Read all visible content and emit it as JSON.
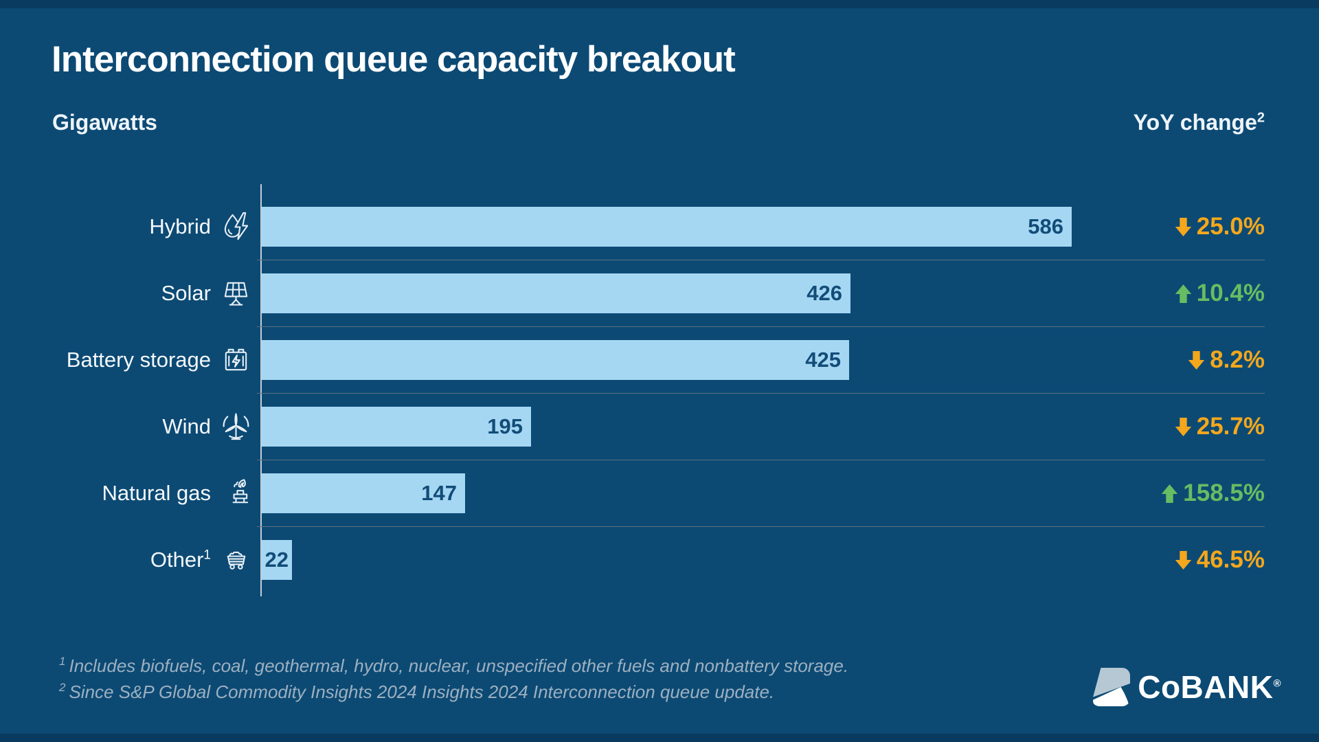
{
  "header": {
    "title": "Interconnection queue capacity breakout",
    "unit_label": "Gigawatts",
    "yoy_label": "YoY change",
    "yoy_sup": "2"
  },
  "chart_data": {
    "type": "bar",
    "orientation": "horizontal",
    "title": "Interconnection queue capacity breakout",
    "value_unit": "gigawatts",
    "categories": [
      "Hybrid",
      "Solar",
      "Battery storage",
      "Wind",
      "Natural gas",
      "Other"
    ],
    "values": [
      586,
      426,
      425,
      195,
      147,
      22
    ],
    "yoy_change_pct": [
      -25.0,
      10.4,
      -8.2,
      -25.7,
      158.5,
      -46.5
    ],
    "xlim": [
      0,
      600
    ],
    "legend": "none",
    "grid": "horizontal-row-separators",
    "value_labels": "inside-bar-end"
  },
  "rows": [
    {
      "label": "Hybrid",
      "label_sup": "",
      "icon": "hybrid-icon",
      "gw": 586,
      "value_label": "586",
      "yoy_label": "25.0%",
      "yoy_direction": "down"
    },
    {
      "label": "Solar",
      "label_sup": "",
      "icon": "solar-icon",
      "gw": 426,
      "value_label": "426",
      "yoy_label": "10.4%",
      "yoy_direction": "up"
    },
    {
      "label": "Battery storage",
      "label_sup": "",
      "icon": "battery-icon",
      "gw": 425,
      "value_label": "425",
      "yoy_label": "8.2%",
      "yoy_direction": "down"
    },
    {
      "label": "Wind",
      "label_sup": "",
      "icon": "wind-icon",
      "gw": 195,
      "value_label": "195",
      "yoy_label": "25.7%",
      "yoy_direction": "down"
    },
    {
      "label": "Natural gas",
      "label_sup": "",
      "icon": "gas-icon",
      "gw": 147,
      "value_label": "147",
      "yoy_label": "158.5%",
      "yoy_direction": "up"
    },
    {
      "label": "Other",
      "label_sup": "1",
      "icon": "other-icon",
      "gw": 22,
      "value_label": "22",
      "yoy_label": "46.5%",
      "yoy_direction": "down"
    }
  ],
  "footnotes": [
    {
      "sup": "1",
      "text": "Includes biofuels, coal, geothermal, hydro, nuclear, unspecified other fuels and nonbattery storage."
    },
    {
      "sup": "2",
      "text": "Since S&P Global Commodity Insights 2024 Insights 2024 Interconnection queue update."
    }
  ],
  "logo": {
    "text": "CoBANK",
    "registered_mark": "®"
  },
  "colors": {
    "background": "#0c4a74",
    "edge_strip": "#083b5f",
    "bar_fill": "#a5d7f3",
    "bar_value_text": "#124c77",
    "increase_green": "#67bd61",
    "decrease_orange": "#f4a71c",
    "gridline": "#5d6f7e",
    "axis_line": "#c2cfd8",
    "footnote_text": "#9db0c0",
    "text_primary": "#ffffff",
    "logo_swoosh": "#b6c8d4"
  }
}
